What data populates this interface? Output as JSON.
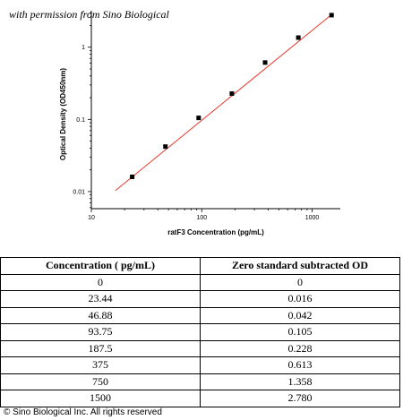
{
  "watermark": "with permission from Sino Biological",
  "chart_data": {
    "type": "scatter",
    "xlabel": "ratF3 Concentration (pg/mL)",
    "ylabel": "Optical Density (OD450nm)",
    "xscale": "log",
    "yscale": "log",
    "xlim": [
      10,
      1800
    ],
    "ylim": [
      0.0058,
      3.2
    ],
    "xticks": [
      10,
      100,
      1000
    ],
    "xticklabels": [
      "10",
      "100",
      "1000"
    ],
    "yticks": [
      0.01,
      0.1,
      1
    ],
    "yticklabels": [
      "0.01",
      "0.1",
      "1"
    ],
    "grid": false,
    "x": [
      23.44,
      46.88,
      93.75,
      187.5,
      375,
      750,
      1500
    ],
    "y": [
      0.016,
      0.042,
      0.105,
      0.228,
      0.613,
      1.358,
      2.78
    ],
    "fit_line": {
      "x": [
        16.5,
        1550
      ],
      "y": [
        0.0103,
        2.95
      ],
      "color": "#e8392f"
    },
    "marker_color": "#000000"
  },
  "table": {
    "headers": [
      "Concentration ( pg/mL)",
      "Zero standard subtracted OD"
    ],
    "rows": [
      [
        "0",
        "0"
      ],
      [
        "23.44",
        "0.016"
      ],
      [
        "46.88",
        "0.042"
      ],
      [
        "93.75",
        "0.105"
      ],
      [
        "187.5",
        "0.228"
      ],
      [
        "375",
        "0.613"
      ],
      [
        "750",
        "1.358"
      ],
      [
        "1500",
        "2.780"
      ]
    ]
  },
  "copyright": "© Sino Biological Inc. All rights reserved"
}
